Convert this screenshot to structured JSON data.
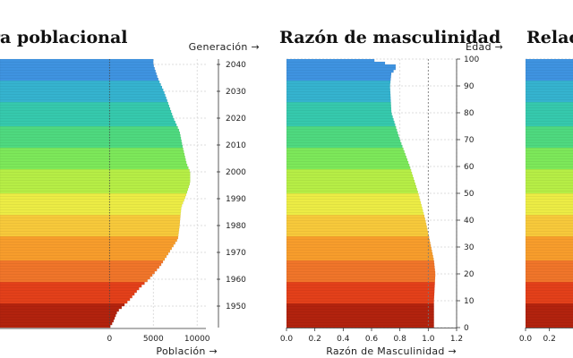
{
  "chart_data": [
    {
      "type": "bar",
      "orientation": "horizontal",
      "title": "ra poblacional",
      "xlabel": "Población →",
      "ylabel": "Generación →",
      "xlim": [
        -12500,
        11000
      ],
      "x_ticks": [
        "0",
        "5000",
        "10000"
      ],
      "x_tick_values": [
        0,
        5000,
        10000
      ],
      "y_ticks": [
        "1950",
        "1960",
        "1970",
        "1980",
        "1990",
        "2000",
        "2010",
        "2020",
        "2030",
        "2040"
      ],
      "y_tick_values": [
        1950,
        1960,
        1970,
        1980,
        1990,
        2000,
        2010,
        2020,
        2030,
        2040
      ],
      "generation_range": [
        1942,
        2042
      ],
      "grid": true,
      "series": [
        {
          "profile": [
            [
              1942,
              0
            ],
            [
              1944,
              400
            ],
            [
              1948,
              900
            ],
            [
              1952,
              2200
            ],
            [
              1957,
              3500
            ],
            [
              1960,
              4500
            ],
            [
              1965,
              5800
            ],
            [
              1970,
              6800
            ],
            [
              1975,
              7800
            ],
            [
              1980,
              8000
            ],
            [
              1984,
              8100
            ],
            [
              1987,
              8200
            ],
            [
              1991,
              8700
            ],
            [
              1996,
              9200
            ],
            [
              2000,
              9200
            ],
            [
              2003,
              8800
            ],
            [
              2010,
              8300
            ],
            [
              2015,
              8000
            ],
            [
              2020,
              7300
            ],
            [
              2030,
              6200
            ],
            [
              2035,
              5500
            ],
            [
              2040,
              5000
            ],
            [
              2042,
              5000
            ]
          ]
        }
      ]
    },
    {
      "type": "bar",
      "orientation": "horizontal",
      "title": "Razón de masculinidad",
      "xlabel": "Razón de Masculinidad →",
      "ylabel": "Edad →",
      "xlim": [
        0,
        1.2
      ],
      "x_ticks": [
        "0.0",
        "0.2",
        "0.4",
        "0.6",
        "0.8",
        "1.0",
        "1.2"
      ],
      "x_tick_values": [
        0,
        0.2,
        0.4,
        0.6,
        0.8,
        1.0,
        1.2
      ],
      "y_ticks": [
        "0",
        "10",
        "20",
        "30",
        "40",
        "50",
        "60",
        "70",
        "80",
        "90",
        "100"
      ],
      "y_tick_values": [
        0,
        10,
        20,
        30,
        40,
        50,
        60,
        70,
        80,
        90,
        100
      ],
      "ylim": [
        0,
        100
      ],
      "reference_line": 1.0,
      "grid": true,
      "series": [
        {
          "profile": [
            [
              0,
              1.04
            ],
            [
              10,
              1.04
            ],
            [
              20,
              1.05
            ],
            [
              25,
              1.04
            ],
            [
              30,
              1.02
            ],
            [
              40,
              0.98
            ],
            [
              50,
              0.93
            ],
            [
              60,
              0.87
            ],
            [
              70,
              0.8
            ],
            [
              80,
              0.74
            ],
            [
              90,
              0.73
            ],
            [
              95,
              0.74
            ],
            [
              96,
              0.77
            ],
            [
              98,
              0.77
            ],
            [
              99,
              0.62
            ],
            [
              100,
              0.62
            ]
          ]
        }
      ]
    },
    {
      "type": "bar",
      "orientation": "horizontal",
      "title": "Relac",
      "x_ticks": [
        "0.0",
        "0.2"
      ],
      "x_tick_values": [
        0,
        0.2
      ],
      "ylim": [
        0,
        100
      ],
      "grid": true
    }
  ],
  "palette": {
    "band_colors": [
      "#b2230e",
      "#e3401a",
      "#f0752a",
      "#f79d2c",
      "#f7c93b",
      "#ecec45",
      "#b6ee46",
      "#7de85a",
      "#4fd97f",
      "#36c9ad",
      "#35b3cf",
      "#3f93e0"
    ]
  }
}
